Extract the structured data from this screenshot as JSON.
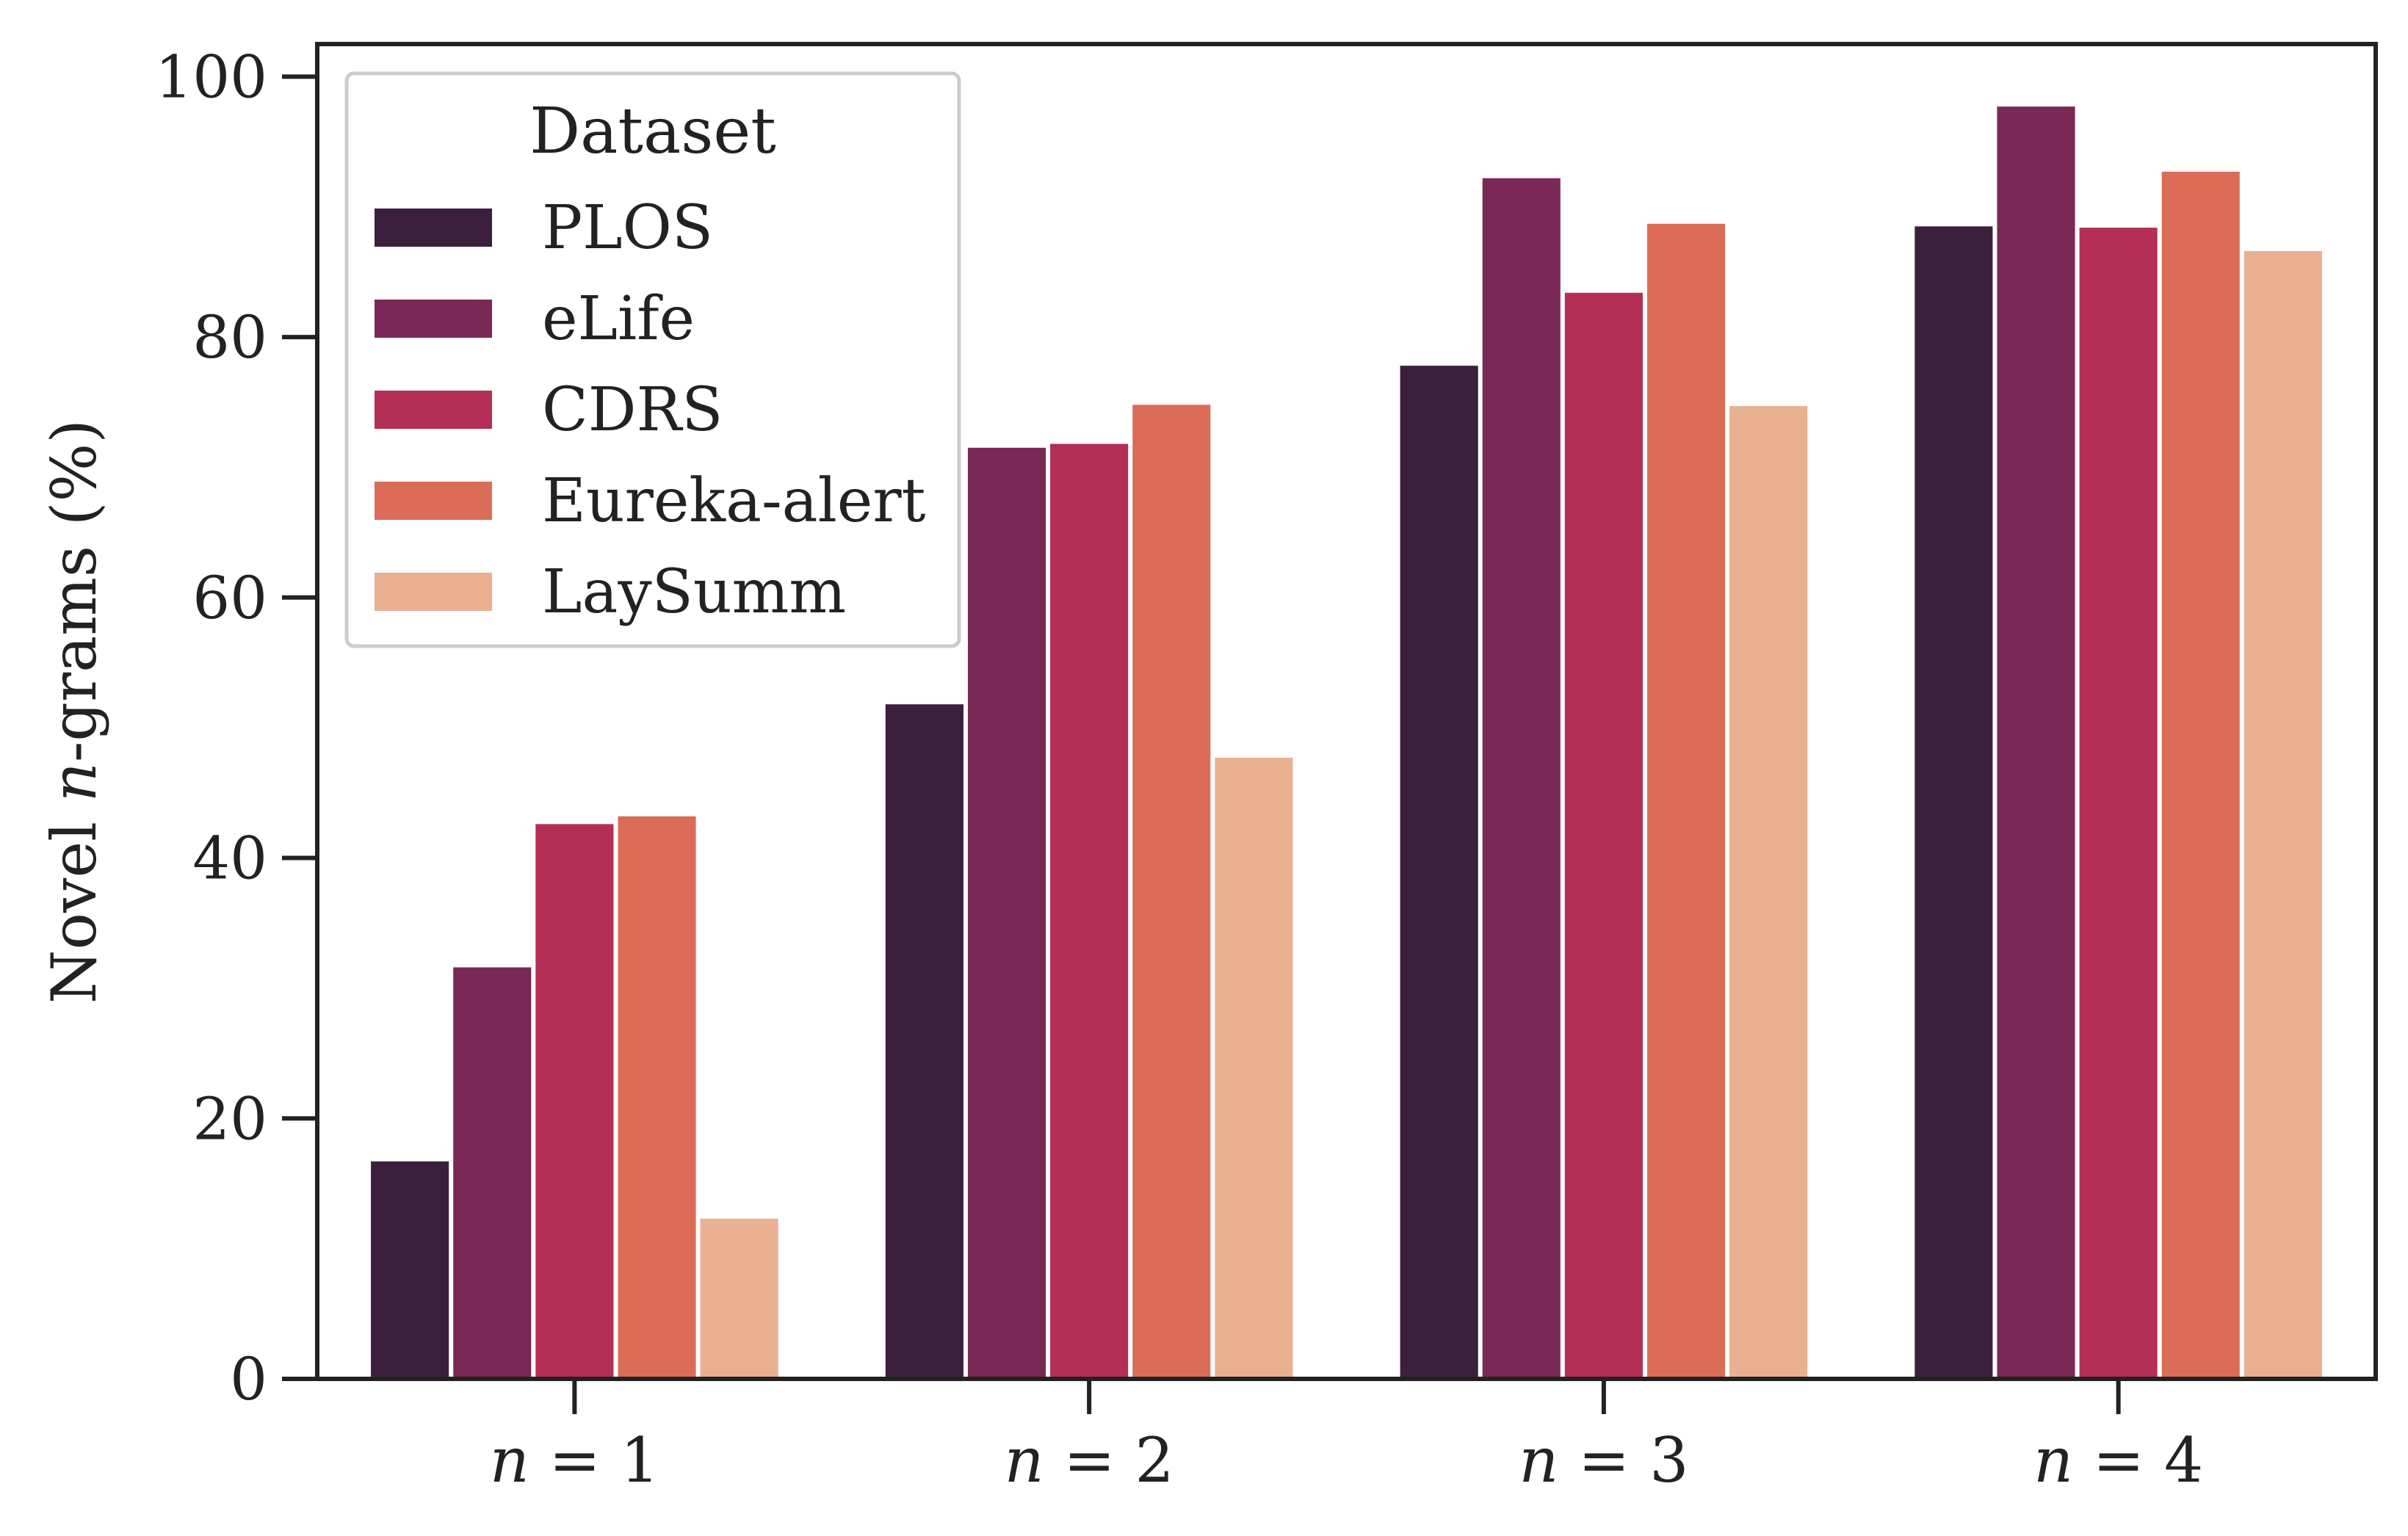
{
  "chart_data": {
    "type": "bar",
    "categories": [
      "n = 1",
      "n = 2",
      "n = 3",
      "n = 4"
    ],
    "category_parts": [
      {
        "var": "n",
        "rest": " = 1"
      },
      {
        "var": "n",
        "rest": " = 2"
      },
      {
        "var": "n",
        "rest": " = 3"
      },
      {
        "var": "n",
        "rest": " = 4"
      }
    ],
    "series": [
      {
        "name": "PLOS",
        "color": "#3b1f3c",
        "values": [
          16.7,
          51.8,
          77.8,
          88.5
        ]
      },
      {
        "name": "eLife",
        "color": "#7a2856",
        "values": [
          31.6,
          71.5,
          92.2,
          97.7
        ]
      },
      {
        "name": "CDRS",
        "color": "#b42e55",
        "values": [
          42.6,
          71.8,
          83.4,
          88.4
        ]
      },
      {
        "name": "Eureka-alert",
        "color": "#db6d58",
        "values": [
          43.2,
          74.8,
          88.7,
          92.7
        ]
      },
      {
        "name": "LaySumm",
        "color": "#e9b092",
        "values": [
          12.3,
          47.7,
          74.7,
          86.6
        ]
      }
    ],
    "title": "",
    "xlabel": "",
    "ylabel": "Novel n-grams (%)",
    "ylabel_parts": {
      "pre": "Novel ",
      "var": "n",
      "post": "-grams (%)"
    },
    "ylim": [
      0,
      102.5
    ],
    "yticks": [
      0,
      20,
      40,
      60,
      80,
      100
    ],
    "grid": false,
    "legend": {
      "title": "Dataset",
      "placement": "top-left"
    }
  }
}
